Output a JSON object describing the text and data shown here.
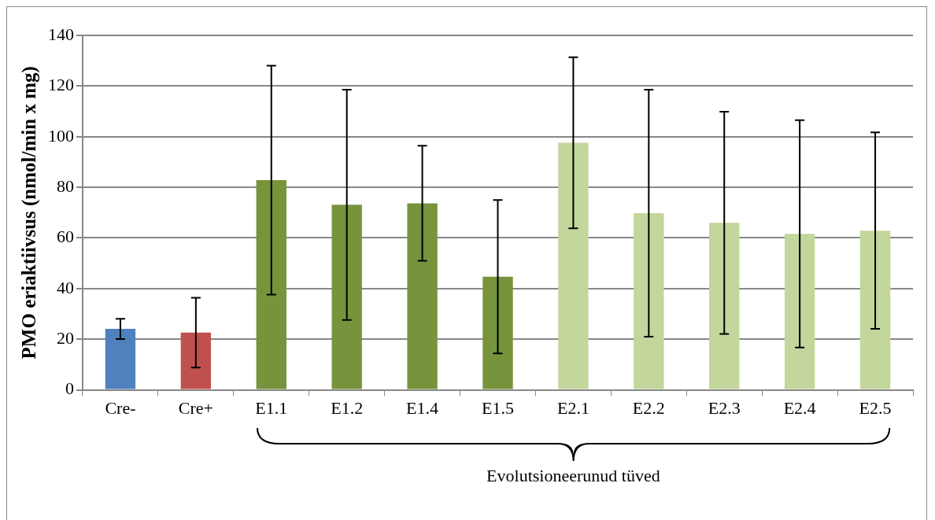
{
  "chart_data": {
    "type": "bar",
    "ylabel": "PMO eriaktiivsus (nmol/min x mg)",
    "categories": [
      "Cre-",
      "Cre+",
      "E1.1",
      "E1.2",
      "E1.4",
      "E1.5",
      "E2.1",
      "E2.2",
      "E2.3",
      "E2.4",
      "E2.5"
    ],
    "values": [
      24.1,
      22.6,
      82.8,
      73.1,
      73.7,
      44.7,
      97.6,
      69.8,
      66.0,
      61.6,
      62.9
    ],
    "errors": [
      4.0,
      13.8,
      45.2,
      45.5,
      22.7,
      30.3,
      33.8,
      48.8,
      43.9,
      44.9,
      38.8
    ],
    "colors": [
      "#4f81bd",
      "#c0504d",
      "#77933c",
      "#77933c",
      "#77933c",
      "#77933c",
      "#c3d69b",
      "#c3d69b",
      "#c3d69b",
      "#c3d69b",
      "#c3d69b"
    ],
    "ylim": [
      0,
      140
    ],
    "yticks": [
      0,
      20,
      40,
      60,
      80,
      100,
      120,
      140
    ],
    "grid": "y",
    "annotations": [
      "Evolutsioneerunud tüved"
    ]
  }
}
